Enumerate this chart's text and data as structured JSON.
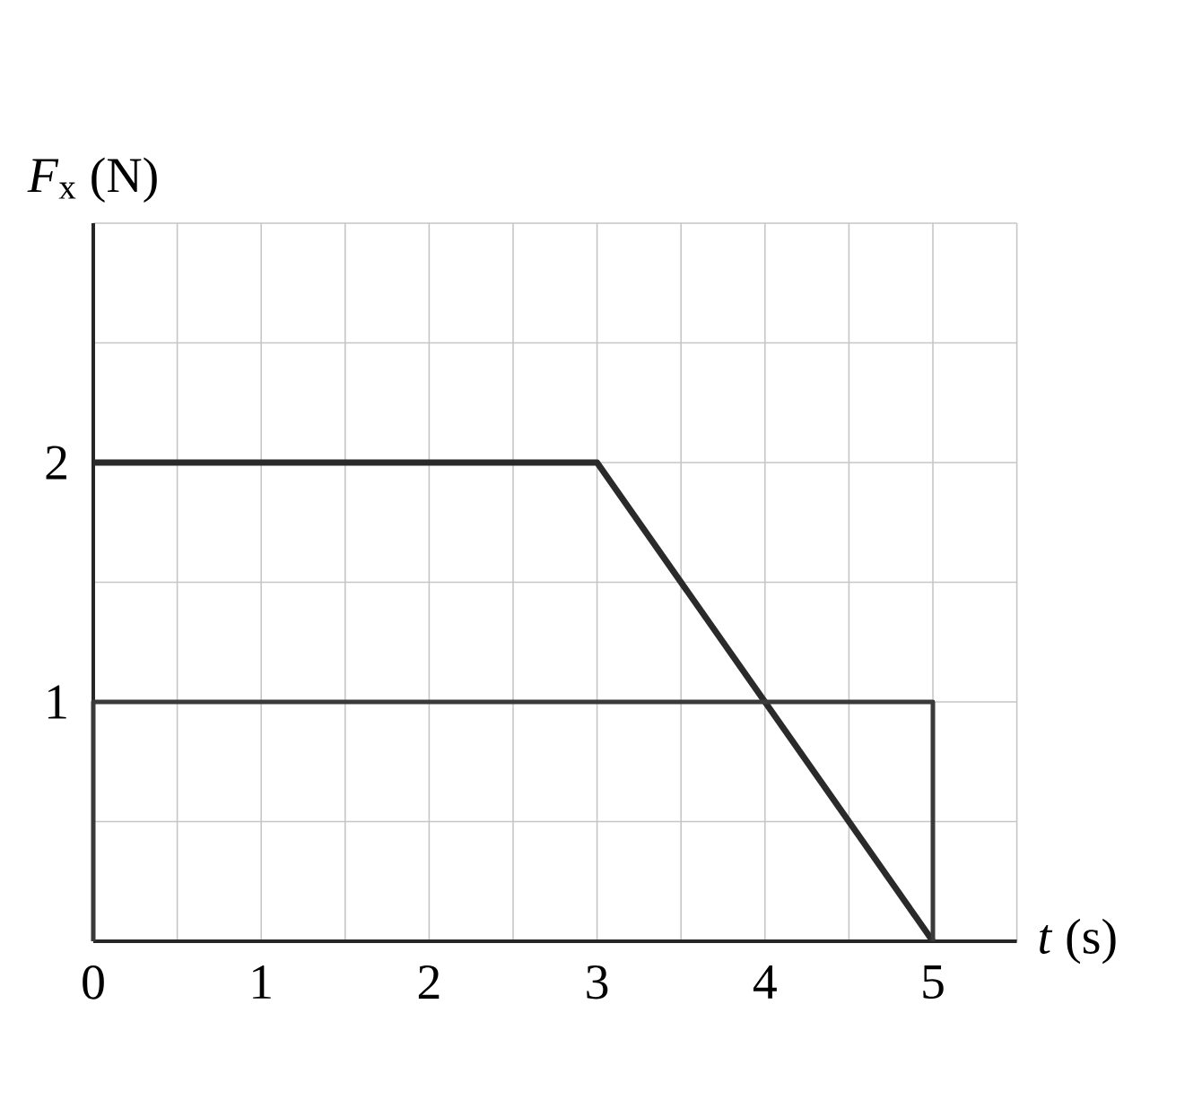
{
  "chart_data": {
    "type": "line",
    "xlabel": "*t* (s)",
    "ylabel": "*F*$_{x}$ (N)",
    "series": [
      {
        "x": [
          0,
          3,
          5
        ],
        "values": [
          2,
          2,
          0
        ],
        "color": "#2a2a2a"
      },
      {
        "x": [
          0,
          0,
          5,
          5
        ],
        "values": [
          0,
          1,
          1,
          0
        ],
        "color": "#3a3a3a"
      }
    ],
    "xlim": [
      0,
      5.5
    ],
    "ylim": [
      0,
      3
    ],
    "xticks": [
      0,
      {
        "value": 0.5,
        "label": null
      },
      1,
      {
        "value": 1.5,
        "label": null
      },
      2,
      {
        "value": 2.5,
        "label": null
      },
      3,
      {
        "value": 3.5,
        "label": null
      },
      4,
      {
        "value": 4.5,
        "label": null
      },
      5,
      {
        "value": 5.5,
        "label": null
      }
    ],
    "yticks": [
      {
        "value": 0.5,
        "label": null
      },
      1,
      {
        "value": 1.5,
        "label": null
      },
      2,
      {
        "value": 2.5,
        "label": null
      },
      {
        "value": 3,
        "label": null
      }
    ],
    "grid": true,
    "line_style": "solid",
    "marker": "none"
  }
}
